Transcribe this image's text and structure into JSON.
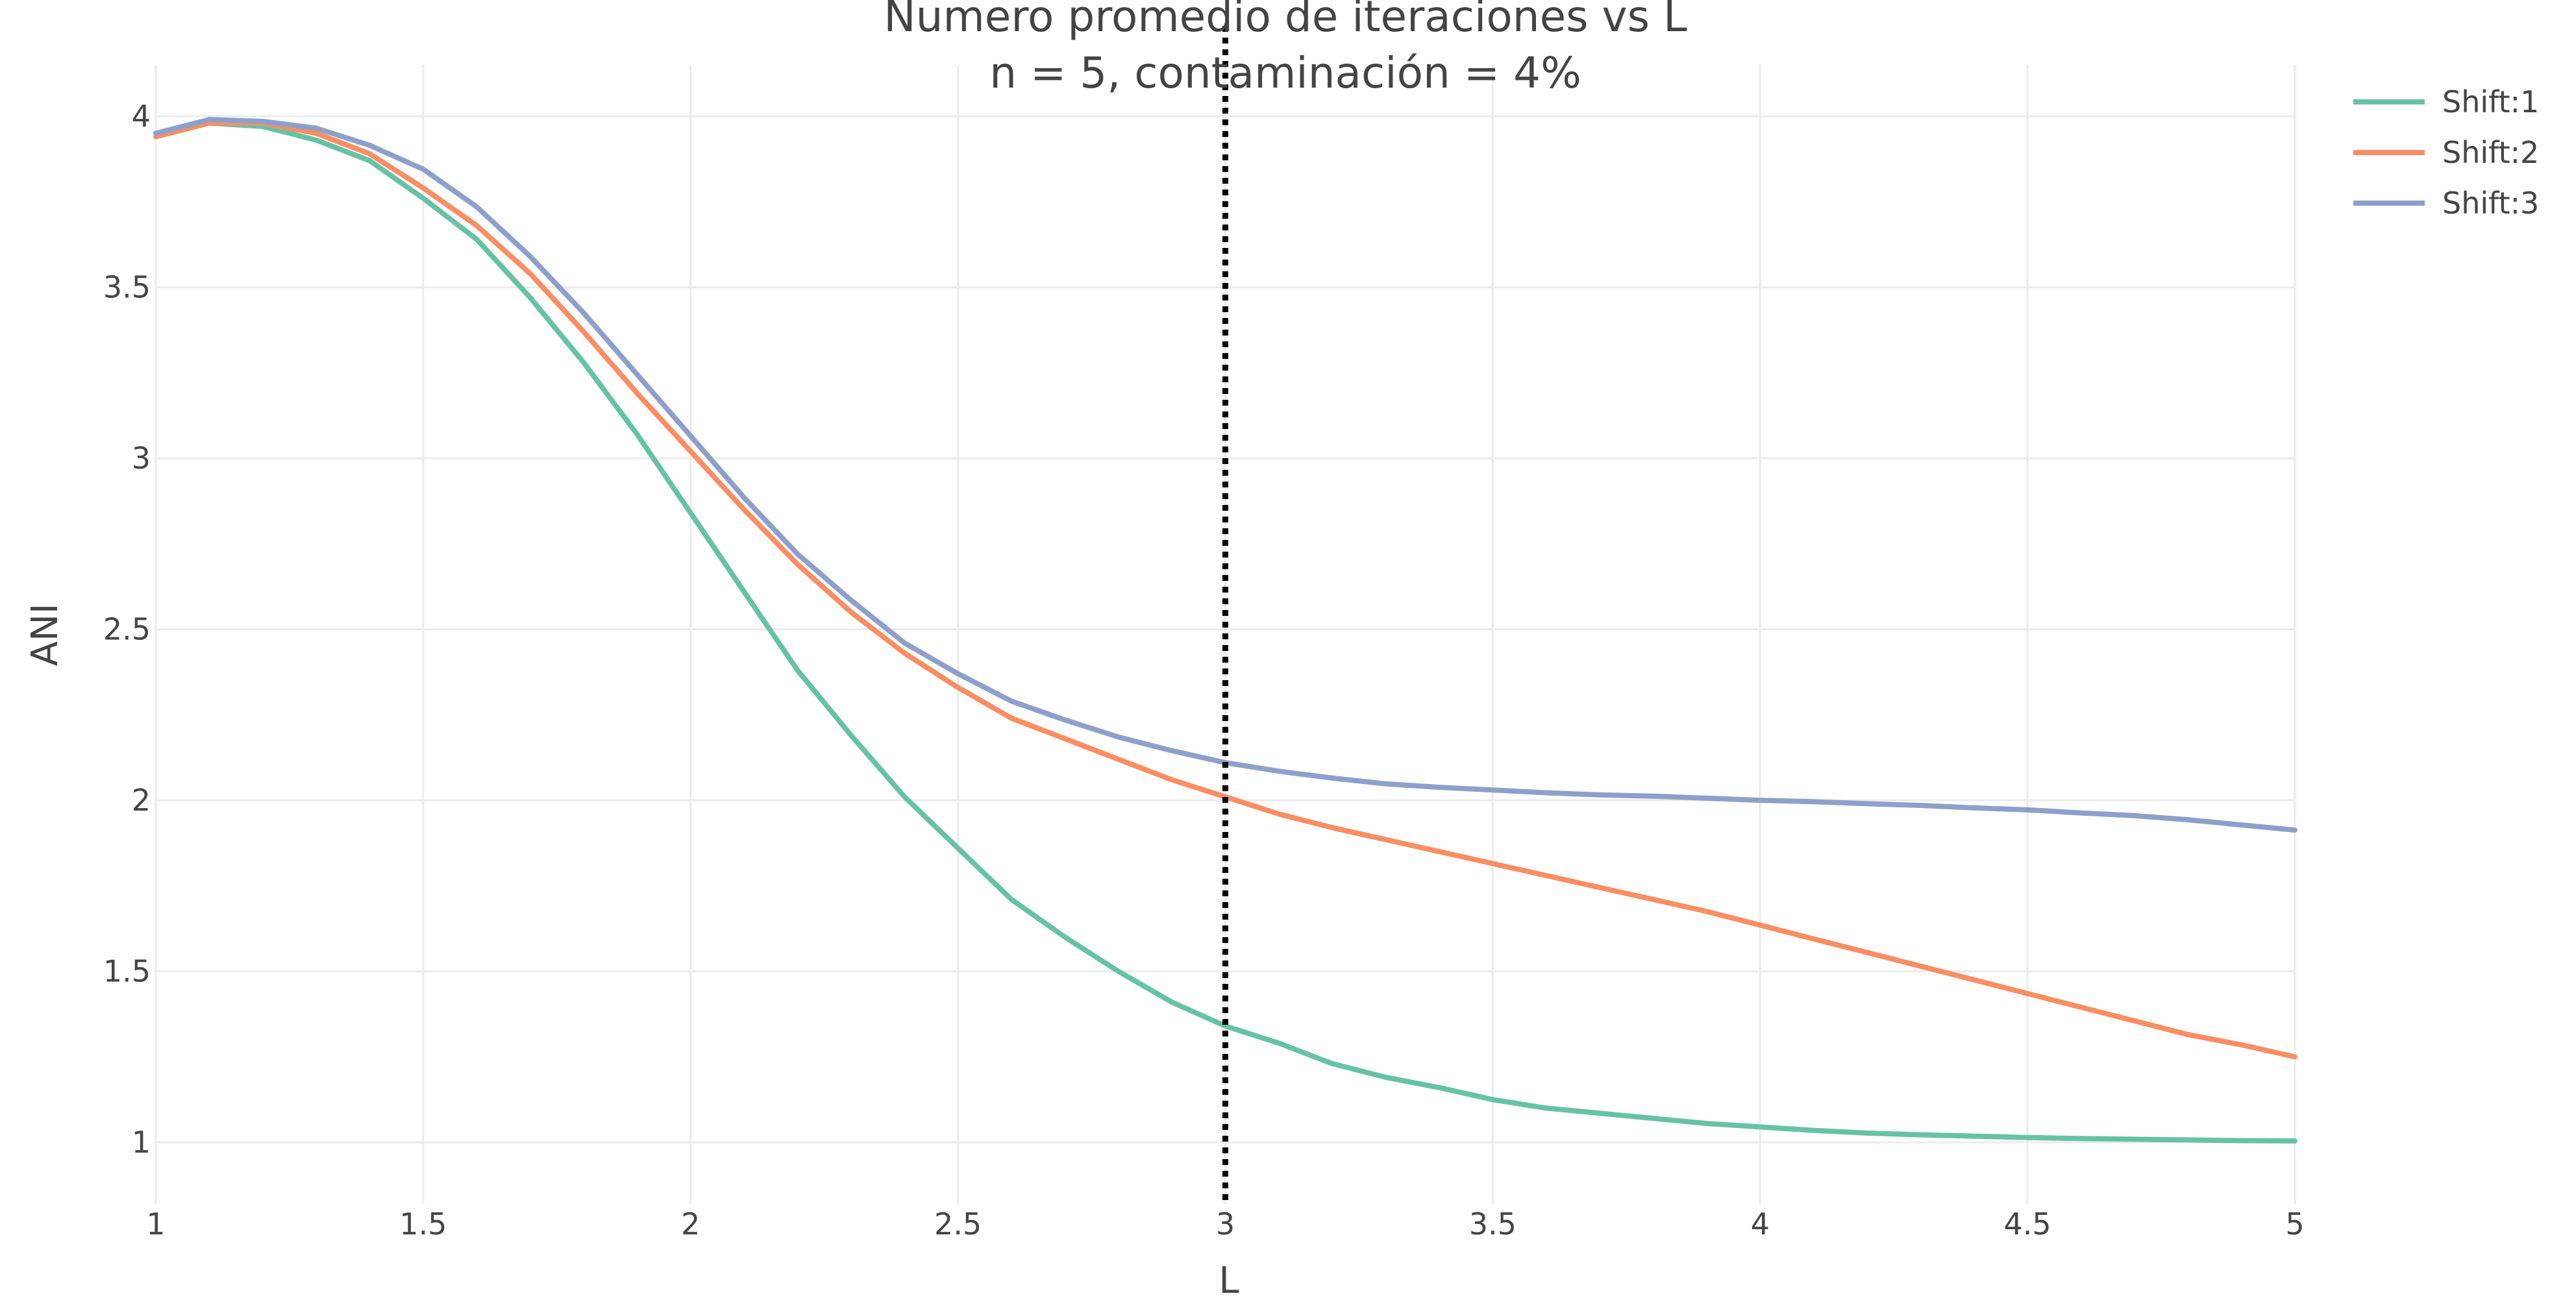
{
  "chart_data": {
    "type": "line",
    "title": "Numero promedio de iteraciones vs L",
    "subtitle": "n = 5, contaminación = 4%",
    "xlabel": "L",
    "ylabel": "ANI",
    "xlim": [
      1,
      5
    ],
    "ylim": [
      0.82,
      4.15
    ],
    "x_ticks": [
      1,
      1.5,
      2,
      2.5,
      3,
      3.5,
      4,
      4.5,
      5
    ],
    "x_tick_labels": [
      "1",
      "1.5",
      "2",
      "2.5",
      "3",
      "3.5",
      "4",
      "4.5",
      "5"
    ],
    "y_ticks": [
      1,
      1.5,
      2,
      2.5,
      3,
      3.5,
      4
    ],
    "y_tick_labels": [
      "1",
      "1.5",
      "2",
      "2.5",
      "3",
      "3.5",
      "4"
    ],
    "grid": true,
    "legend_position": "top-right",
    "reference_line": {
      "x": 3,
      "style": "dotted",
      "color": "#000000"
    },
    "x": [
      1.0,
      1.1,
      1.2,
      1.3,
      1.4,
      1.5,
      1.6,
      1.7,
      1.8,
      1.9,
      2.0,
      2.1,
      2.2,
      2.3,
      2.4,
      2.5,
      2.6,
      2.7,
      2.8,
      2.9,
      3.0,
      3.1,
      3.2,
      3.3,
      3.4,
      3.5,
      3.6,
      3.7,
      3.8,
      3.9,
      4.0,
      4.1,
      4.2,
      4.3,
      4.4,
      4.5,
      4.6,
      4.7,
      4.8,
      4.9,
      5.0
    ],
    "series": [
      {
        "name": "Shift:1",
        "color": "#66c2a5",
        "values": [
          3.95,
          3.98,
          3.97,
          3.93,
          3.87,
          3.76,
          3.64,
          3.47,
          3.28,
          3.07,
          2.84,
          2.61,
          2.38,
          2.19,
          2.01,
          1.86,
          1.71,
          1.6,
          1.5,
          1.41,
          1.34,
          1.29,
          1.23,
          1.19,
          1.16,
          1.125,
          1.1,
          1.085,
          1.07,
          1.055,
          1.045,
          1.035,
          1.027,
          1.022,
          1.018,
          1.014,
          1.011,
          1.009,
          1.007,
          1.005,
          1.004
        ]
      },
      {
        "name": "Shift:2",
        "color": "#fc8d62",
        "values": [
          3.94,
          3.98,
          3.98,
          3.95,
          3.89,
          3.79,
          3.68,
          3.54,
          3.37,
          3.19,
          3.02,
          2.85,
          2.69,
          2.55,
          2.43,
          2.33,
          2.24,
          2.18,
          2.12,
          2.06,
          2.01,
          1.96,
          1.92,
          1.885,
          1.85,
          1.815,
          1.78,
          1.745,
          1.71,
          1.675,
          1.635,
          1.595,
          1.555,
          1.515,
          1.475,
          1.435,
          1.395,
          1.355,
          1.315,
          1.285,
          1.25
        ]
      },
      {
        "name": "Shift:3",
        "color": "#8da0cb",
        "values": [
          3.95,
          3.99,
          3.985,
          3.965,
          3.915,
          3.845,
          3.735,
          3.59,
          3.425,
          3.245,
          3.065,
          2.885,
          2.72,
          2.585,
          2.46,
          2.37,
          2.29,
          2.235,
          2.185,
          2.145,
          2.11,
          2.085,
          2.065,
          2.048,
          2.038,
          2.03,
          2.022,
          2.016,
          2.012,
          2.006,
          2.0,
          1.996,
          1.99,
          1.985,
          1.978,
          1.972,
          1.963,
          1.955,
          1.943,
          1.928,
          1.913
        ]
      }
    ]
  }
}
